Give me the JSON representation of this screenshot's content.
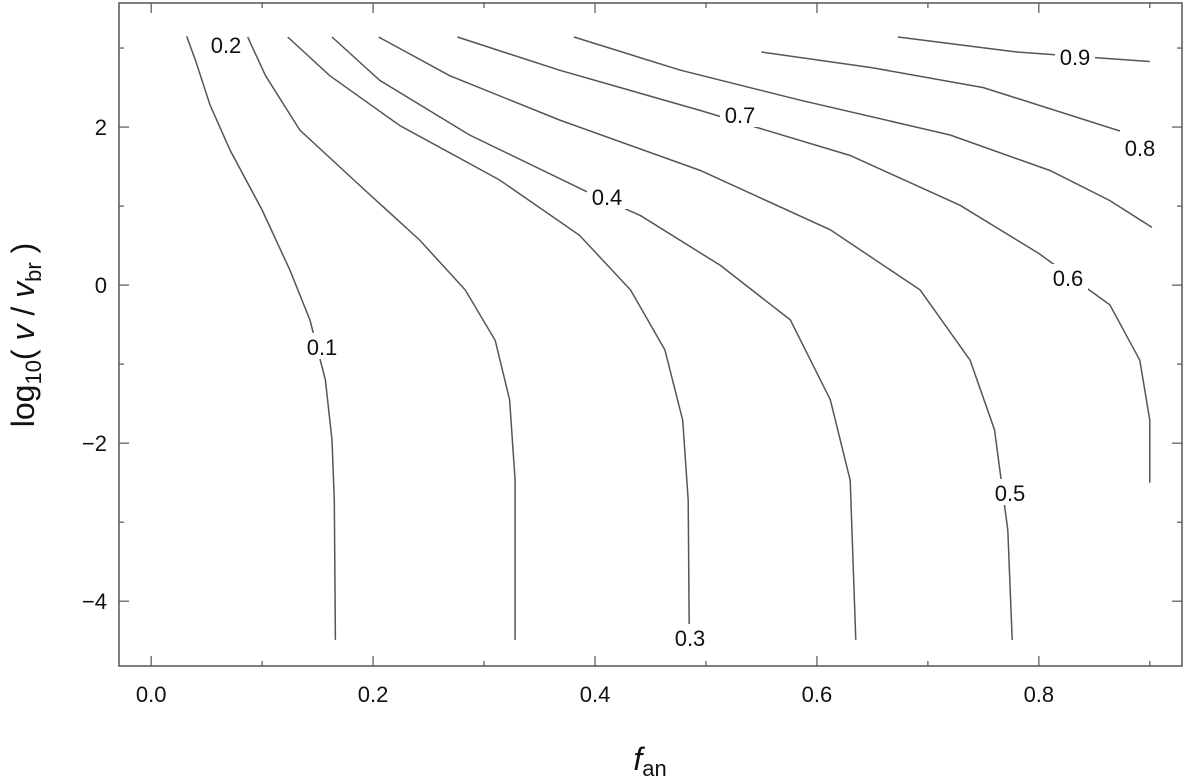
{
  "chart_data": {
    "type": "contour",
    "xlabel": [
      "f",
      "an"
    ],
    "ylabel": [
      "log",
      "10",
      "( ",
      "v",
      " / ",
      "v",
      "br",
      " )"
    ],
    "xlim": [
      -0.029,
      0.929
    ],
    "ylim": [
      -4.82,
      3.57
    ],
    "xticks": [
      {
        "value": 0,
        "label": "0.0"
      },
      0.2,
      0.4,
      0.6,
      0.8
    ],
    "xminorticks": [
      0.1,
      0.3,
      0.5,
      0.7,
      0.9
    ],
    "yticks": [
      {
        "value": -4,
        "label": "−4"
      },
      {
        "value": -2,
        "label": "−2"
      },
      0,
      2
    ],
    "yminorticks": [
      -3,
      -1,
      1,
      3
    ],
    "color": "#555555",
    "series": [
      {
        "level": 0.1,
        "x": [
          0.032,
          0.04,
          0.053,
          0.071,
          0.1,
          0.125,
          0.143,
          0.157,
          0.163,
          0.165,
          0.166
        ],
        "y": [
          3.15,
          2.84,
          2.28,
          1.71,
          0.95,
          0.19,
          -0.44,
          -1.2,
          -1.96,
          -2.72,
          -4.49
        ]
      },
      {
        "level": 0.2,
        "x": [
          0.087,
          0.103,
          0.134,
          0.188,
          0.242,
          0.283,
          0.31,
          0.323,
          0.328,
          0.328
        ],
        "y": [
          3.14,
          2.65,
          1.96,
          1.26,
          0.57,
          -0.06,
          -0.7,
          -1.45,
          -2.47,
          -4.49
        ]
      },
      {
        "level": 0.3,
        "x": [
          0.123,
          0.161,
          0.224,
          0.314,
          0.386,
          0.432,
          0.463,
          0.479,
          0.484,
          0.485
        ],
        "y": [
          3.14,
          2.65,
          2.02,
          1.33,
          0.63,
          -0.06,
          -0.82,
          -1.71,
          -2.72,
          -4.49
        ]
      },
      {
        "level": 0.4,
        "x": [
          0.163,
          0.206,
          0.287,
          0.39,
          0.441,
          0.513,
          0.576,
          0.612,
          0.63,
          0.635
        ],
        "y": [
          3.14,
          2.59,
          1.9,
          1.2,
          0.88,
          0.25,
          -0.44,
          -1.45,
          -2.47,
          -4.49
        ]
      },
      {
        "level": 0.5,
        "x": [
          0.205,
          0.269,
          0.368,
          0.495,
          0.612,
          0.693,
          0.738,
          0.76,
          0.772,
          0.776
        ],
        "y": [
          3.14,
          2.65,
          2.09,
          1.45,
          0.7,
          -0.06,
          -0.95,
          -1.83,
          -3.1,
          -4.49
        ]
      },
      {
        "level": 0.6,
        "x": [
          0.276,
          0.368,
          0.495,
          0.63,
          0.729,
          0.8,
          0.864,
          0.891,
          0.9,
          0.9
        ],
        "y": [
          3.14,
          2.72,
          2.21,
          1.64,
          1.01,
          0.4,
          -0.25,
          -0.95,
          -1.71,
          -2.5
        ]
      },
      {
        "level": 0.7,
        "x": [
          0.381,
          0.477,
          0.585,
          0.72,
          0.81,
          0.864,
          0.902
        ],
        "y": [
          3.14,
          2.72,
          2.34,
          1.9,
          1.45,
          1.07,
          0.73
        ]
      },
      {
        "level": 0.8,
        "x": [
          0.55,
          0.65,
          0.75,
          0.873
        ],
        "y": [
          2.95,
          2.75,
          2.5,
          1.95
        ]
      },
      {
        "level": 0.9,
        "x": [
          0.673,
          0.78,
          0.9
        ],
        "y": [
          3.14,
          2.95,
          2.83
        ]
      }
    ]
  }
}
